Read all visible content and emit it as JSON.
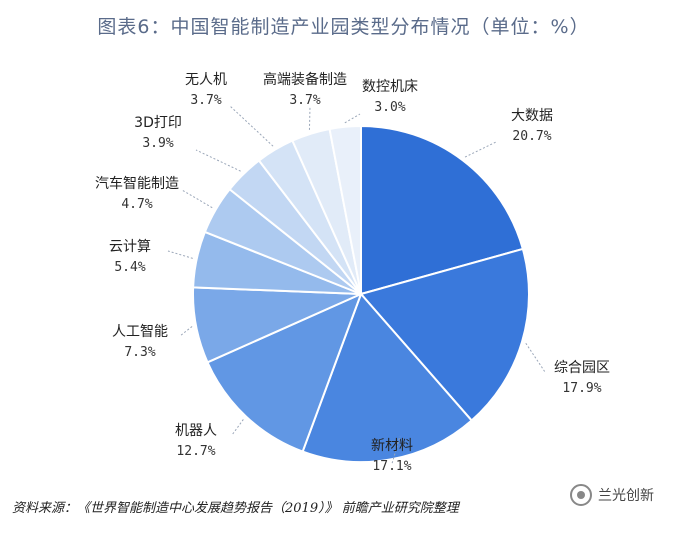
{
  "title": "图表6：中国智能制造产业园类型分布情况（单位：%）",
  "source": "资料来源：《世界智能制造中心发展趋势报告（2019）》 前瞻产业研究院整理",
  "watermark": "兰光创新",
  "chart_data": {
    "type": "pie",
    "unit": "%",
    "slices": [
      {
        "name": "大数据",
        "value": 20.7,
        "label": "20.7%",
        "color": "#2f6fd6"
      },
      {
        "name": "综合园区",
        "value": 17.9,
        "label": "17.9%",
        "color": "#3a79dc"
      },
      {
        "name": "新材料",
        "value": 17.1,
        "label": "17.1%",
        "color": "#4a86e0"
      },
      {
        "name": "机器人",
        "value": 12.7,
        "label": "12.7%",
        "color": "#6197e4"
      },
      {
        "name": "人工智能",
        "value": 7.3,
        "label": "7.3%",
        "color": "#7aa8e8"
      },
      {
        "name": "云计算",
        "value": 5.4,
        "label": "5.4%",
        "color": "#94baec"
      },
      {
        "name": "汽车智能制造",
        "value": 4.7,
        "label": "4.7%",
        "color": "#adcaf0"
      },
      {
        "name": "3D打印",
        "value": 3.9,
        "label": "3.9%",
        "color": "#c2d7f3"
      },
      {
        "name": "无人机",
        "value": 3.7,
        "label": "3.7%",
        "color": "#d4e3f6"
      },
      {
        "name": "高端装备制造",
        "value": 3.7,
        "label": "3.7%",
        "color": "#e1ebf8"
      },
      {
        "name": "数控机床",
        "value": 3.0,
        "label": "3.0%",
        "color": "#e9f0fa"
      }
    ]
  }
}
